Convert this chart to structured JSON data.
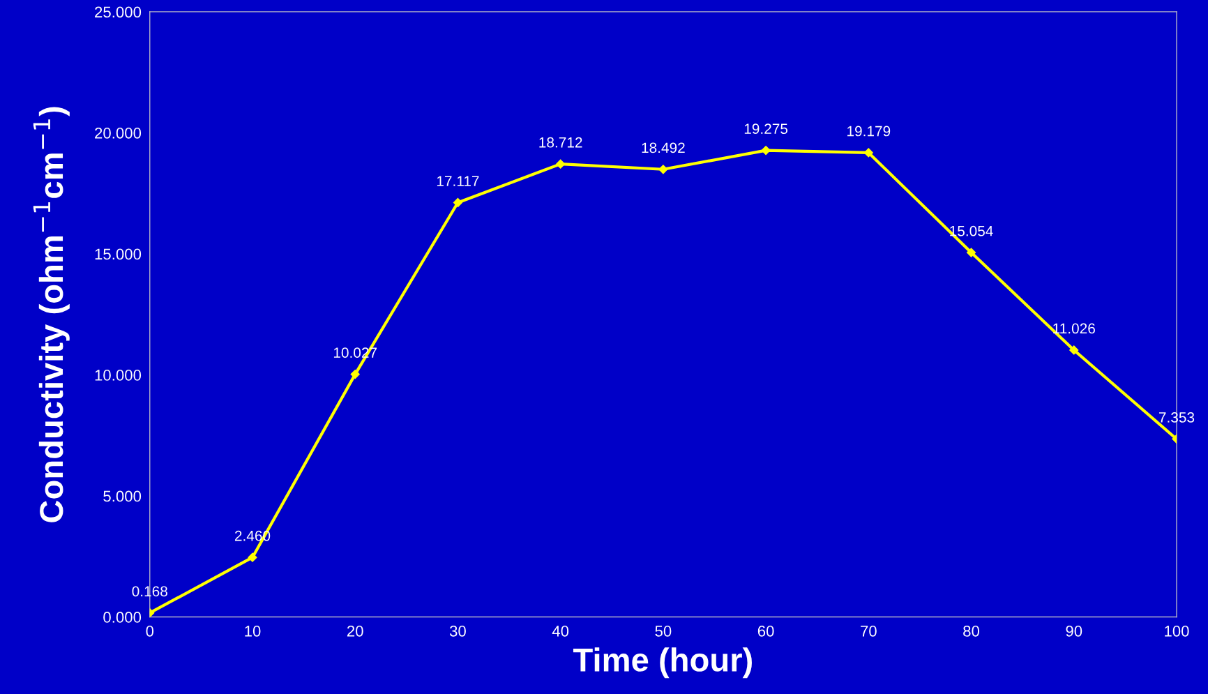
{
  "chart_data": {
    "type": "line",
    "xlabel": "Time (hour)",
    "ylabel": "Conductivity (ohm$^{−1}$cm$^{−1}$)",
    "x": [
      0,
      10,
      20,
      30,
      40,
      50,
      60,
      70,
      80,
      90,
      100
    ],
    "series": [
      {
        "color": "#ffff00",
        "values": [
          0.168,
          2.46,
          10.027,
          17.117,
          18.712,
          18.492,
          19.275,
          19.179,
          15.054,
          11.026,
          7.353
        ]
      }
    ],
    "xlim": [
      0,
      100
    ],
    "xticks": [
      0,
      10,
      20,
      30,
      40,
      50,
      60,
      70,
      80,
      90,
      100
    ],
    "ylim": [
      0,
      25
    ],
    "yticks": [
      {
        "value": 0,
        "label": "0.000"
      },
      {
        "value": 5,
        "label": "5.000"
      },
      {
        "value": 10,
        "label": "10.000"
      },
      {
        "value": 15,
        "label": "15.000"
      },
      {
        "value": 20,
        "label": "20.000"
      },
      {
        "value": 25,
        "label": "25.000"
      }
    ],
    "value_labels": [
      "0.168",
      "2.460",
      "10.027",
      "17.117",
      "18.712",
      "18.492",
      "19.275",
      "19.179",
      "15.054",
      "11.026",
      "7.353"
    ],
    "marker": "diamond",
    "line_style": "solid",
    "grid": false,
    "legend": false
  }
}
